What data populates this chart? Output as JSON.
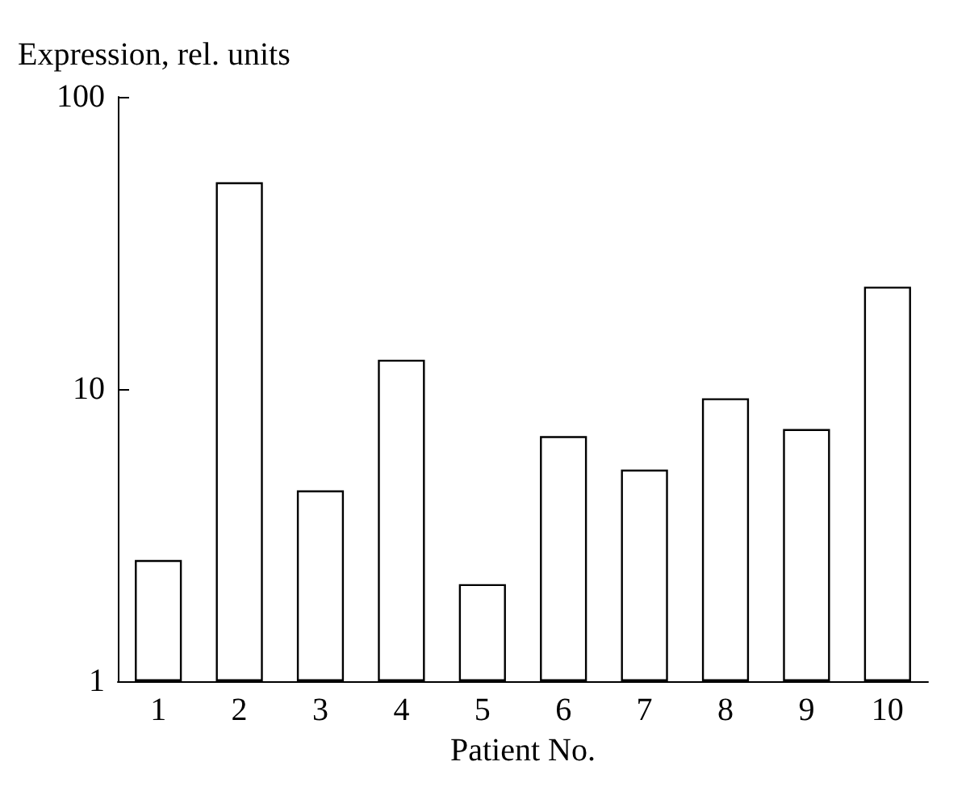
{
  "chart_data": {
    "type": "bar",
    "ylabel": "Expression, rel. units",
    "xlabel": "Patient No.",
    "categories": [
      "1",
      "2",
      "3",
      "4",
      "5",
      "6",
      "7",
      "8",
      "9",
      "10"
    ],
    "values": [
      2.6,
      51,
      4.5,
      12.6,
      2.15,
      6.9,
      5.3,
      9.3,
      7.3,
      22.4
    ],
    "color": "#ffffff",
    "log": true,
    "ylim": [
      1,
      100
    ],
    "yticks": [
      1,
      10,
      100
    ],
    "grid": false
  }
}
